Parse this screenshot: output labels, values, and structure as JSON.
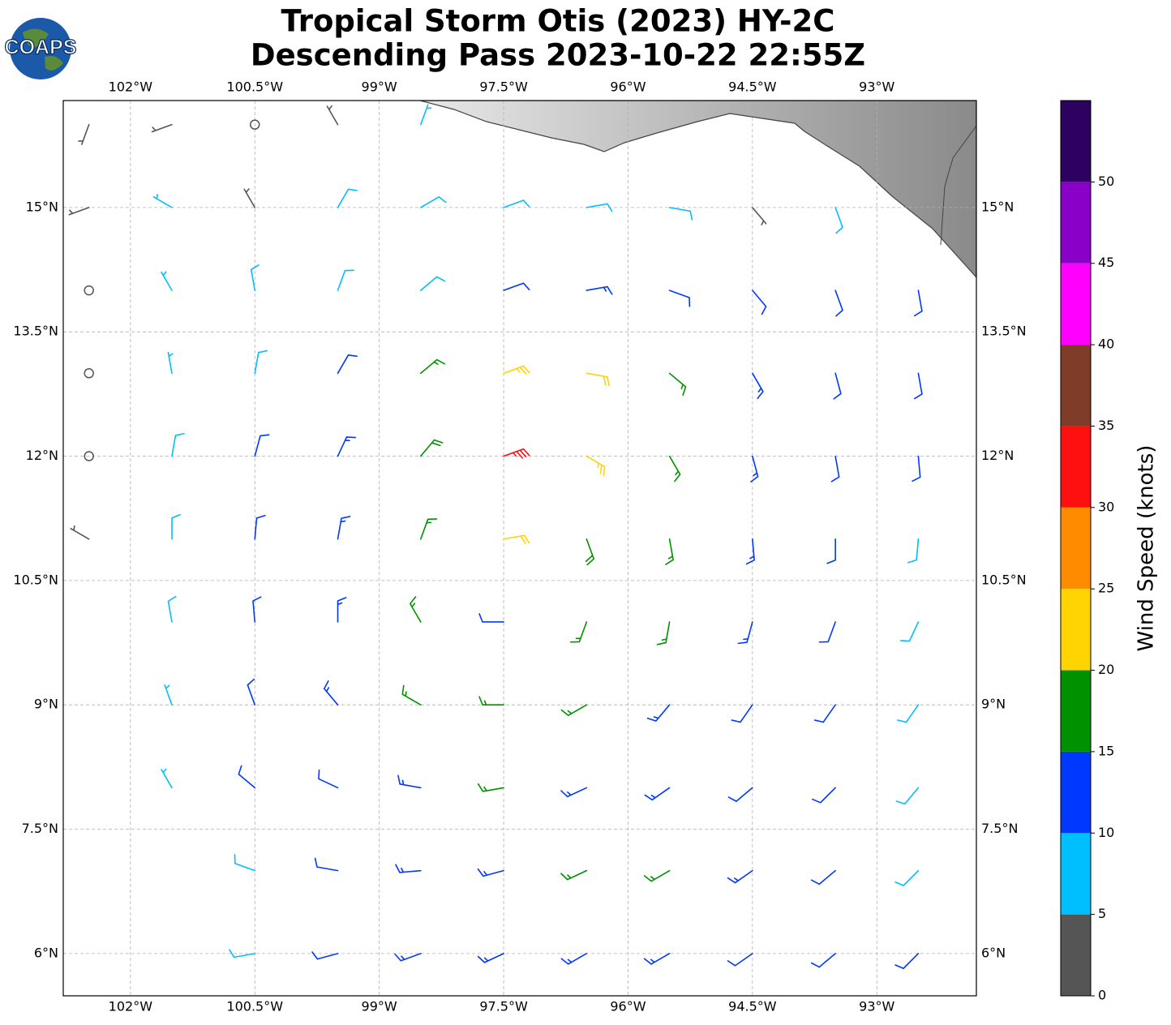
{
  "chart_data": {
    "type": "wind-barbs",
    "title": [
      "Tropical Storm Otis (2023) HY-2C",
      "Descending Pass 2023-10-22 22:55Z"
    ],
    "logo_text": "COAPS",
    "xlim": [
      -102.81,
      -91.8
    ],
    "ylim": [
      5.49,
      16.29
    ],
    "xticks": [
      {
        "value": -102,
        "label": "102°W"
      },
      {
        "value": -100.5,
        "label": "100.5°W"
      },
      {
        "value": -99,
        "label": "99°W"
      },
      {
        "value": -97.5,
        "label": "97.5°W"
      },
      {
        "value": -96,
        "label": "96°W"
      },
      {
        "value": -94.5,
        "label": "94.5°W"
      },
      {
        "value": -93,
        "label": "93°W"
      }
    ],
    "yticks": [
      {
        "value": 6,
        "label": "6°N"
      },
      {
        "value": 7.5,
        "label": "7.5°N"
      },
      {
        "value": 9,
        "label": "9°N"
      },
      {
        "value": 10.5,
        "label": "10.5°N"
      },
      {
        "value": 12,
        "label": "12°N"
      },
      {
        "value": 13.5,
        "label": "13.5°N"
      },
      {
        "value": 15,
        "label": "15°N"
      }
    ],
    "grid": true,
    "colorbar": {
      "label": "Wind Speed (knots)",
      "clim": [
        0,
        55
      ],
      "bounds": [
        0,
        5,
        10,
        15,
        20,
        25,
        30,
        35,
        40,
        45,
        50,
        55
      ],
      "colors": [
        "#555555",
        "#00bfff",
        "#0038ff",
        "#009100",
        "#ffd400",
        "#ff8c00",
        "#ff1010",
        "#7f3c28",
        "#ff00ff",
        "#8a00c8",
        "#2e0060"
      ],
      "ticks": [
        0,
        5,
        10,
        15,
        20,
        25,
        30,
        35,
        40,
        45,
        50
      ]
    },
    "barbs": [
      {
        "lat": 16,
        "lon": [
          -102.5,
          -101.5,
          -100.5,
          -99.5,
          -98.5
        ],
        "speed": [
          4,
          3,
          2,
          4,
          6
        ],
        "direction": [
          200,
          250,
          300,
          330,
          20
        ]
      },
      {
        "lat": 15,
        "lon": [
          -102.5,
          -101.5,
          -100.5,
          -99.5,
          -98.5,
          -97.5,
          -96.5,
          -95.5,
          -94.5,
          -93.5
        ],
        "speed": [
          3,
          7,
          4,
          8,
          9,
          8,
          9,
          9,
          4,
          8
        ],
        "direction": [
          250,
          300,
          330,
          30,
          60,
          70,
          80,
          100,
          140,
          160
        ]
      },
      {
        "lat": 14,
        "lon": [
          -102.5,
          -101.5,
          -100.5,
          -99.5,
          -98.5,
          -97.5,
          -96.5,
          -95.5,
          -94.5,
          -93.5,
          -92.5
        ],
        "speed": [
          1,
          6,
          8,
          9,
          9,
          12,
          14,
          12,
          12,
          12,
          11
        ],
        "direction": [
          0,
          330,
          350,
          20,
          50,
          70,
          80,
          110,
          140,
          160,
          170
        ]
      },
      {
        "lat": 13,
        "lon": [
          -102.5,
          -101.5,
          -100.5,
          -99.5,
          -98.5,
          -97.5,
          -96.5,
          -95.5,
          -94.5,
          -93.5,
          -92.5
        ],
        "speed": [
          1,
          7,
          9,
          11,
          15,
          24,
          22,
          17,
          13,
          12,
          11
        ],
        "direction": [
          0,
          350,
          10,
          30,
          50,
          70,
          100,
          130,
          150,
          165,
          170
        ]
      },
      {
        "lat": 12,
        "lon": [
          -102.5,
          -101.5,
          -100.5,
          -99.5,
          -98.5,
          -97.5,
          -96.5,
          -95.5,
          -94.5,
          -93.5,
          -92.5
        ],
        "speed": [
          2,
          8,
          10,
          13,
          19,
          33,
          23,
          16,
          13,
          12,
          10
        ],
        "direction": [
          20,
          10,
          15,
          25,
          40,
          70,
          120,
          150,
          165,
          170,
          175
        ]
      },
      {
        "lat": 11,
        "lon": [
          -102.5,
          -101.5,
          -100.5,
          -99.5,
          -98.5,
          -97.5,
          -96.5,
          -95.5,
          -94.5,
          -93.5,
          -92.5
        ],
        "speed": [
          4,
          8,
          11,
          13,
          17,
          22,
          18,
          16,
          13,
          12,
          9
        ],
        "direction": [
          300,
          0,
          5,
          10,
          20,
          80,
          160,
          170,
          175,
          180,
          185
        ]
      },
      {
        "lat": 10,
        "lon": [
          -101.5,
          -100.5,
          -99.5,
          -98.5,
          -97.5,
          -96.5,
          -95.5,
          -94.5,
          -93.5,
          -92.5
        ],
        "speed": [
          8,
          11,
          13,
          17,
          12,
          17,
          16,
          13,
          12,
          9
        ],
        "direction": [
          350,
          355,
          0,
          330,
          270,
          200,
          190,
          195,
          200,
          205
        ]
      },
      {
        "lat": 9,
        "lon": [
          -101.5,
          -100.5,
          -99.5,
          -98.5,
          -97.5,
          -96.5,
          -95.5,
          -94.5,
          -93.5,
          -92.5
        ],
        "speed": [
          7,
          10,
          13,
          16,
          17,
          17,
          14,
          12,
          11,
          8
        ],
        "direction": [
          340,
          340,
          320,
          300,
          270,
          240,
          220,
          215,
          215,
          215
        ]
      },
      {
        "lat": 8,
        "lon": [
          -101.5,
          -100.5,
          -99.5,
          -98.5,
          -97.5,
          -96.5,
          -95.5,
          -94.5,
          -93.5,
          -92.5
        ],
        "speed": [
          7,
          10,
          12,
          14,
          17,
          14,
          13,
          12,
          10,
          8
        ],
        "direction": [
          330,
          310,
          295,
          280,
          260,
          245,
          235,
          230,
          225,
          220
        ]
      },
      {
        "lat": 7,
        "lon": [
          -100.5,
          -99.5,
          -98.5,
          -97.5,
          -96.5,
          -95.5,
          -94.5,
          -93.5,
          -92.5
        ],
        "speed": [
          9,
          12,
          13,
          14,
          17,
          16,
          13,
          11,
          8
        ],
        "direction": [
          290,
          280,
          265,
          255,
          245,
          240,
          235,
          230,
          225
        ]
      },
      {
        "lat": 6,
        "lon": [
          -100.5,
          -99.5,
          -98.5,
          -97.5,
          -96.5,
          -95.5,
          -94.5,
          -93.5,
          -92.5
        ],
        "speed": [
          9,
          12,
          13,
          13,
          13,
          13,
          12,
          12,
          10
        ],
        "direction": [
          260,
          255,
          250,
          245,
          240,
          240,
          235,
          230,
          225
        ]
      }
    ]
  }
}
